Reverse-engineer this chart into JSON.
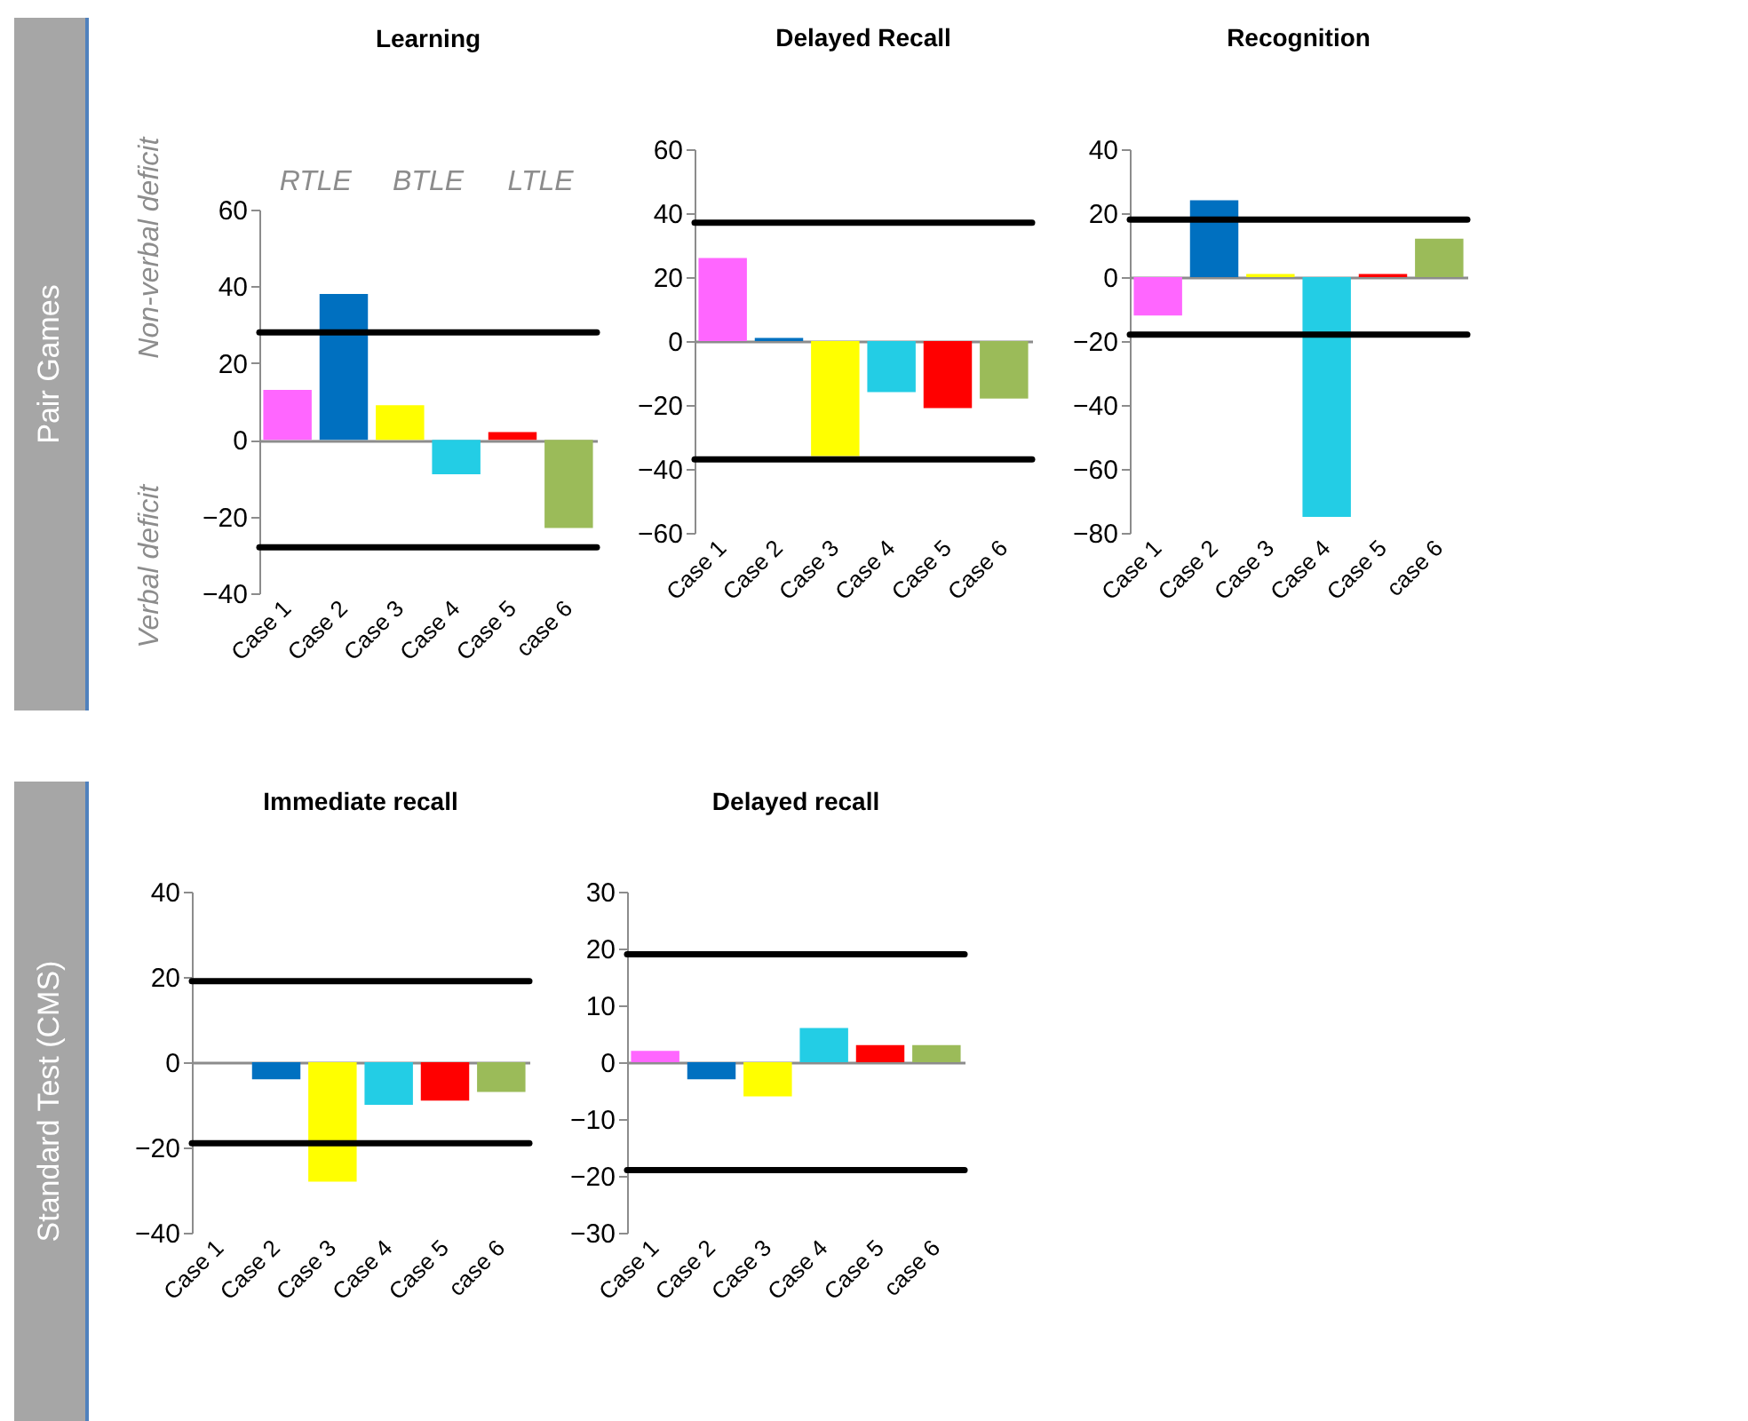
{
  "chart_data": [
    {
      "type": "bar",
      "title": "Learning",
      "categories": [
        "Case 1",
        "Case 2",
        "Case 3",
        "Case 4",
        "Case 5",
        "case 6"
      ],
      "values": [
        13,
        38,
        9,
        -9,
        2,
        -23
      ],
      "colors": [
        "#ff66ff",
        "#0070c0",
        "#ffff00",
        "#23cde5",
        "#ff0000",
        "#9bbb59"
      ],
      "ylim": [
        -40,
        60
      ],
      "yticks": [
        -40,
        -20,
        0,
        20,
        40,
        60
      ],
      "ref_lines": [
        {
          "axis": "y",
          "value": 28
        },
        {
          "axis": "y",
          "value": -28
        }
      ],
      "annotations": [
        "Pair Games",
        "Non-verbal deficit",
        "Verbal deficit",
        "RTLE",
        "BTLE",
        "LTLE"
      ]
    },
    {
      "type": "bar",
      "title": "Delayed Recall",
      "categories": [
        "Case 1",
        "Case 2",
        "Case 3",
        "Case 4",
        "Case 5",
        "Case 6"
      ],
      "values": [
        26,
        1,
        -36,
        -16,
        -21,
        -18
      ],
      "colors": [
        "#ff66ff",
        "#0070c0",
        "#ffff00",
        "#23cde5",
        "#ff0000",
        "#9bbb59"
      ],
      "ylim": [
        -60,
        60
      ],
      "yticks": [
        -60,
        -40,
        -20,
        0,
        20,
        40,
        60
      ],
      "ref_lines": [
        {
          "axis": "y",
          "value": 37
        },
        {
          "axis": "y",
          "value": -37
        }
      ]
    },
    {
      "type": "bar",
      "title": "Recognition",
      "categories": [
        "Case 1",
        "Case 2",
        "Case 3",
        "Case 4",
        "Case 5",
        "case 6"
      ],
      "values": [
        -12,
        24,
        1,
        -75,
        1,
        12
      ],
      "colors": [
        "#ff66ff",
        "#0070c0",
        "#ffff00",
        "#23cde5",
        "#ff0000",
        "#9bbb59"
      ],
      "ylim": [
        -80,
        40
      ],
      "yticks": [
        -80,
        -60,
        -40,
        -20,
        0,
        20,
        40
      ],
      "ref_lines": [
        {
          "axis": "y",
          "value": 18
        },
        {
          "axis": "y",
          "value": -18
        }
      ]
    },
    {
      "type": "bar",
      "title": "Immediate recall",
      "categories": [
        "Case 1",
        "Case 2",
        "Case 3",
        "Case 4",
        "Case 5",
        "case 6"
      ],
      "values": [
        0,
        -4,
        -28,
        -10,
        -9,
        -7
      ],
      "colors": [
        "#ff66ff",
        "#0070c0",
        "#ffff00",
        "#23cde5",
        "#ff0000",
        "#9bbb59"
      ],
      "ylim": [
        -40,
        40
      ],
      "yticks": [
        -40,
        -20,
        0,
        20,
        40
      ],
      "ref_lines": [
        {
          "axis": "y",
          "value": 19
        },
        {
          "axis": "y",
          "value": -19
        }
      ],
      "annotations": [
        "Standard Test (CMS)"
      ]
    },
    {
      "type": "bar",
      "title": "Delayed recall",
      "categories": [
        "Case 1",
        "Case 2",
        "Case 3",
        "Case 4",
        "Case 5",
        "case 6"
      ],
      "values": [
        2,
        -3,
        -6,
        6,
        3,
        3
      ],
      "colors": [
        "#ff66ff",
        "#0070c0",
        "#ffff00",
        "#23cde5",
        "#ff0000",
        "#9bbb59"
      ],
      "ylim": [
        -30,
        30
      ],
      "yticks": [
        -30,
        -20,
        -10,
        0,
        10,
        20,
        30
      ],
      "ref_lines": [
        {
          "axis": "y",
          "value": 19
        },
        {
          "axis": "y",
          "value": -19
        }
      ]
    }
  ]
}
